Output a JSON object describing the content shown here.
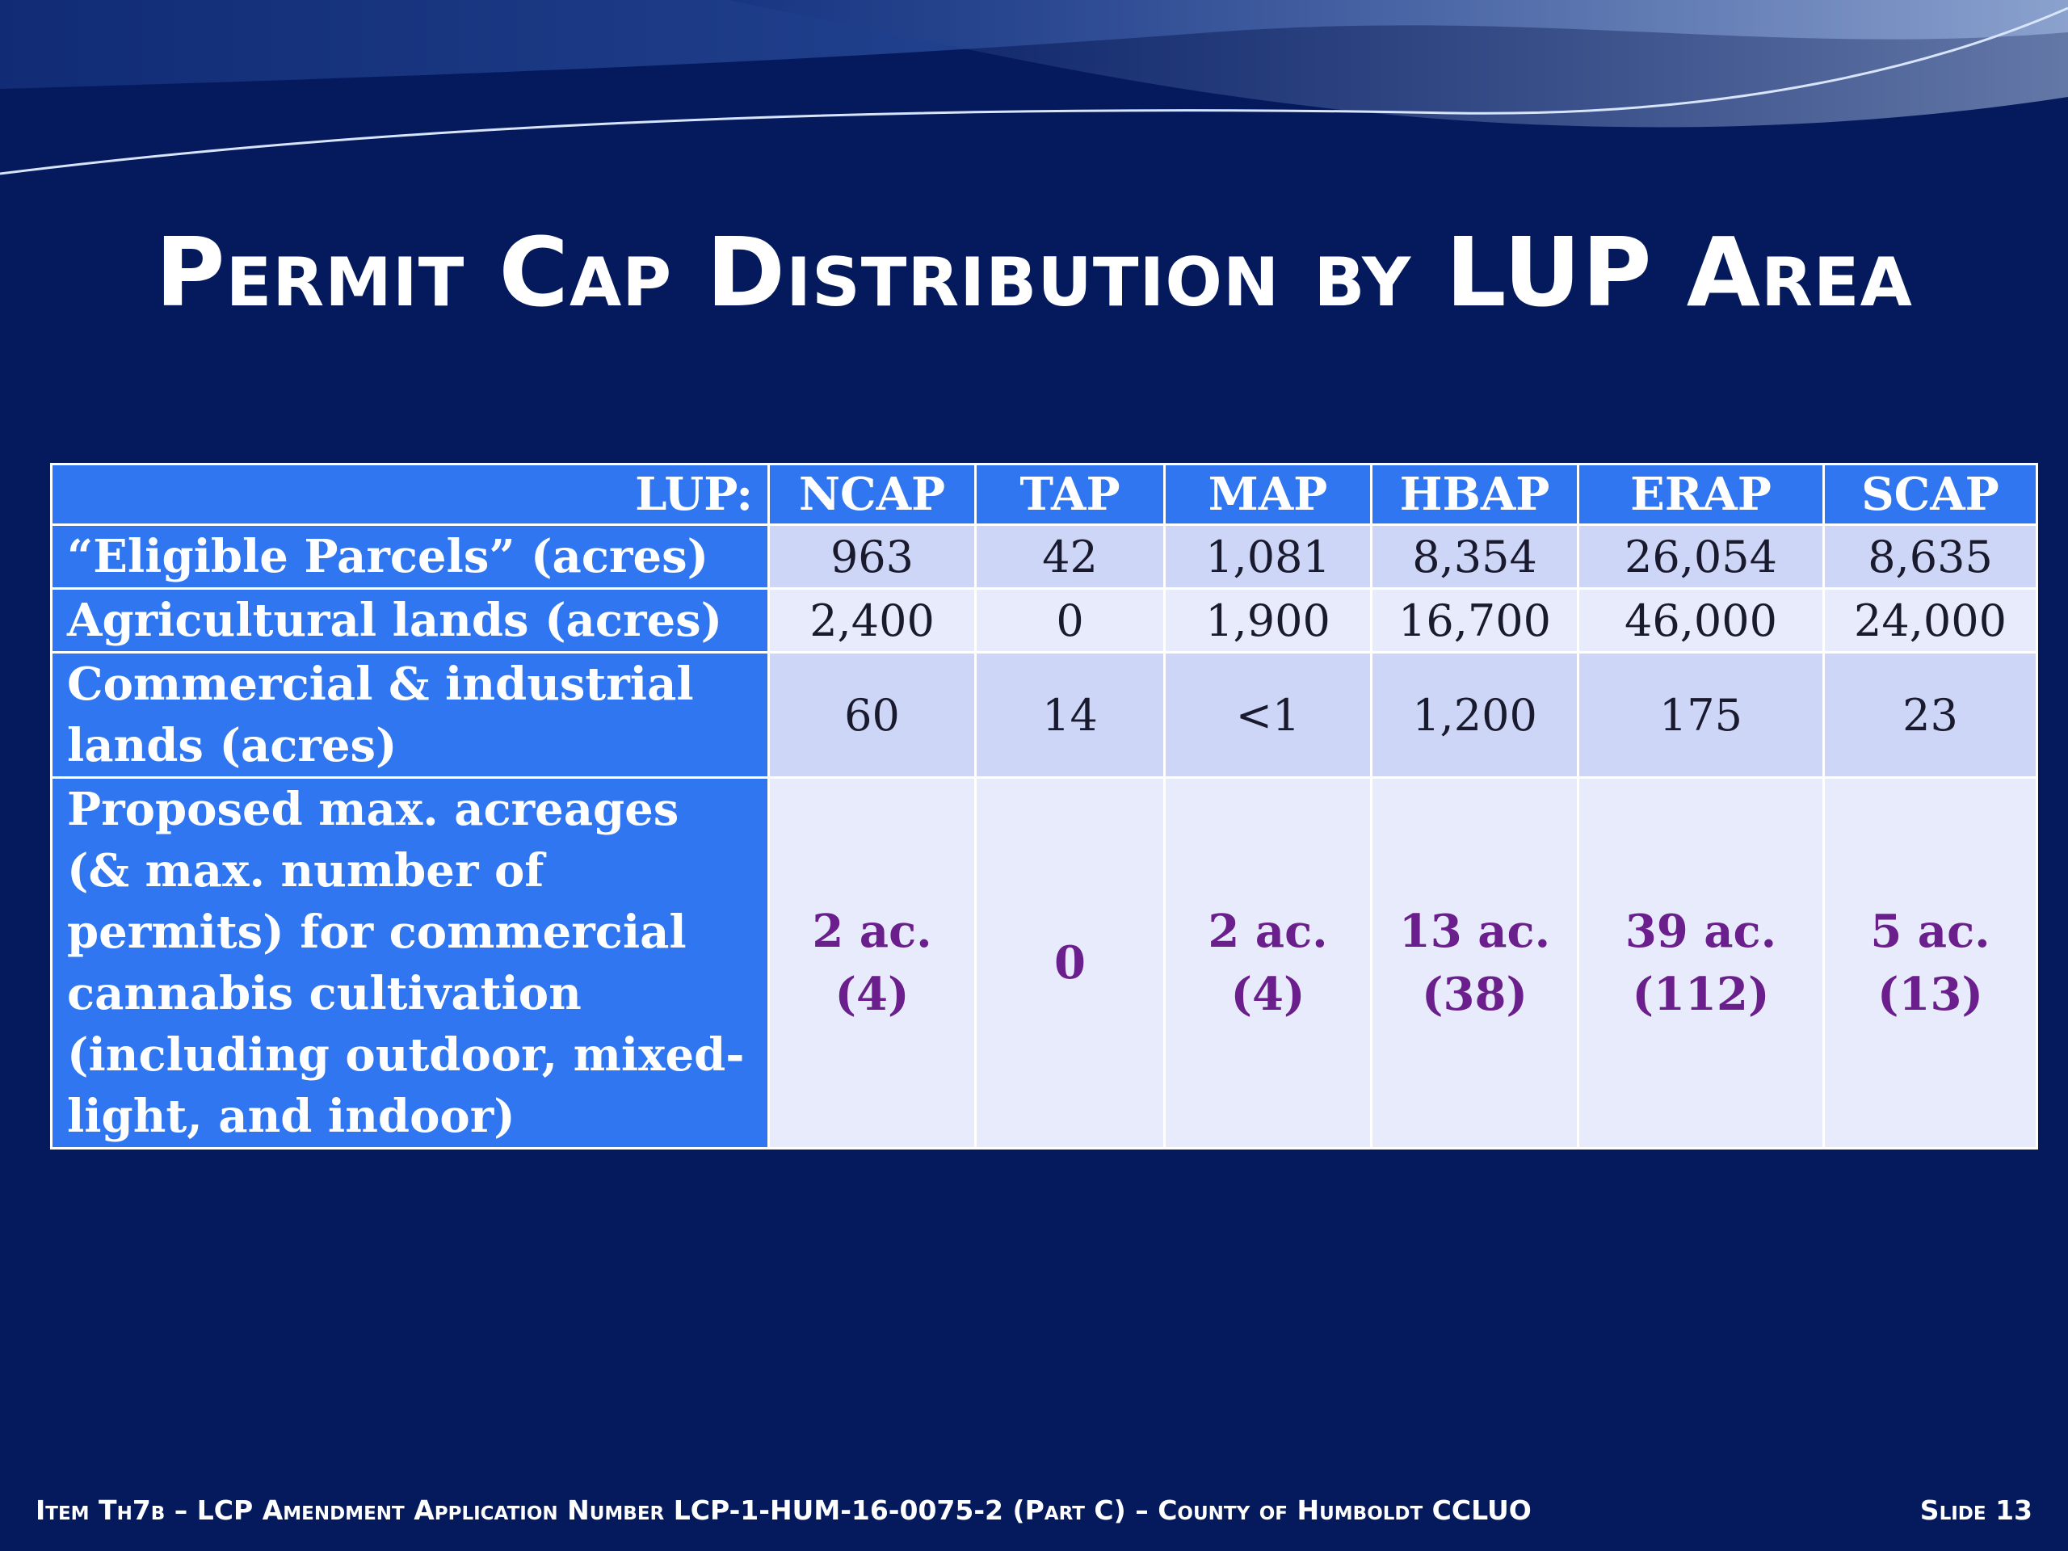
{
  "slide": {
    "title": "Permit Cap Distribution by LUP Area",
    "footer": "Item Th7b – LCP Amendment Application Number LCP-1-HUM-16-0075-2 (Part C) – County of Humboldt CCLUO",
    "slide_number": "Slide 13"
  },
  "table": {
    "corner_label": "LUP:",
    "columns": [
      "NCAP",
      "TAP",
      "MAP",
      "HBAP",
      "ERAP",
      "SCAP"
    ],
    "rows": [
      {
        "label": "“Eligible Parcels” (acres)",
        "values": [
          "963",
          "42",
          "1,081",
          "8,354",
          "26,054",
          "8,635"
        ]
      },
      {
        "label": "Agricultural lands (acres)",
        "values": [
          "2,400",
          "0",
          "1,900",
          "16,700",
          "46,000",
          "24,000"
        ]
      },
      {
        "label": "Commercial & industrial lands (acres)",
        "values": [
          "60",
          "14",
          "<1",
          "1,200",
          "175",
          "23"
        ]
      },
      {
        "label": "Proposed max. acreages (& max. number of permits) for commercial cannabis cultivation (including outdoor, mixed-light, and indoor)",
        "values": [
          "2 ac. (4)",
          "0",
          "2 ac. (4)",
          "13 ac. (38)",
          "39 ac. (112)",
          "5 ac. (13)"
        ]
      }
    ]
  },
  "colors": {
    "background": "#041a5c",
    "header_fill": "#2f76f0",
    "cell_fill_dark": "#cdd6f6",
    "cell_fill_light": "#e8ebfb",
    "highlight_text": "#6a1f8c"
  }
}
